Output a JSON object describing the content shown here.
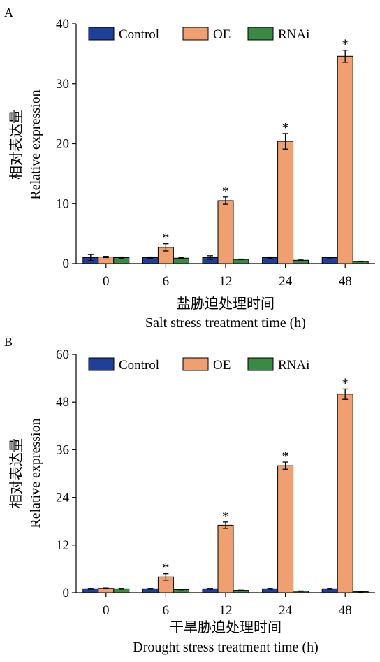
{
  "colors": {
    "control": "#1f3f99",
    "oe": "#f0a070",
    "rnai": "#3a8a45",
    "axis": "#000000"
  },
  "chart_data": [
    {
      "panel_label": "A",
      "type": "bar",
      "categories": [
        "0",
        "6",
        "12",
        "24",
        "48"
      ],
      "series": [
        {
          "name": "Control",
          "values": [
            1.0,
            1.0,
            1.0,
            1.0,
            1.0
          ],
          "errors": [
            0.5,
            0.1,
            0.3,
            0.1,
            0.05
          ]
        },
        {
          "name": "OE",
          "values": [
            1.1,
            2.7,
            10.5,
            20.4,
            34.6
          ],
          "errors": [
            0.1,
            0.6,
            0.6,
            1.3,
            1.0
          ]
        },
        {
          "name": "RNAi",
          "values": [
            1.0,
            0.9,
            0.7,
            0.55,
            0.35
          ],
          "errors": [
            0.1,
            0.1,
            0.05,
            0.05,
            0.05
          ]
        }
      ],
      "significant": [
        false,
        true,
        true,
        true,
        true
      ],
      "significance_mark": "*",
      "ylim": [
        0,
        40
      ],
      "yticks": [
        "0",
        "10",
        "20",
        "30",
        "40"
      ],
      "ylabel_zh": "相对表达量",
      "ylabel": "Relative expression",
      "xlabel_zh": "盐胁迫处理时间",
      "xlabel": "Salt stress treatment time (h)",
      "legend": [
        "Control",
        "OE",
        "RNAi"
      ],
      "legend_position": "top"
    },
    {
      "panel_label": "B",
      "type": "bar",
      "categories": [
        "0",
        "6",
        "12",
        "24",
        "48"
      ],
      "series": [
        {
          "name": "Control",
          "values": [
            1.0,
            1.0,
            1.0,
            1.0,
            1.0
          ],
          "errors": [
            0.1,
            0.1,
            0.1,
            0.1,
            0.1
          ]
        },
        {
          "name": "OE",
          "values": [
            1.1,
            4.0,
            17.0,
            32.0,
            50.0
          ],
          "errors": [
            0.1,
            0.8,
            0.8,
            0.9,
            1.3
          ]
        },
        {
          "name": "RNAi",
          "values": [
            1.0,
            0.8,
            0.6,
            0.4,
            0.25
          ],
          "errors": [
            0.1,
            0.05,
            0.05,
            0.05,
            0.05
          ]
        }
      ],
      "significant": [
        false,
        true,
        true,
        true,
        true
      ],
      "significance_mark": "*",
      "ylim": [
        0,
        60
      ],
      "yticks": [
        "0",
        "12",
        "24",
        "36",
        "48",
        "60"
      ],
      "ylabel_zh": "相对表达量",
      "ylabel": "Relative expression",
      "xlabel_zh": "干旱胁迫处理时间",
      "xlabel": "Drought stress treatment time (h)",
      "legend": [
        "Control",
        "OE",
        "RNAi"
      ],
      "legend_position": "top"
    }
  ]
}
